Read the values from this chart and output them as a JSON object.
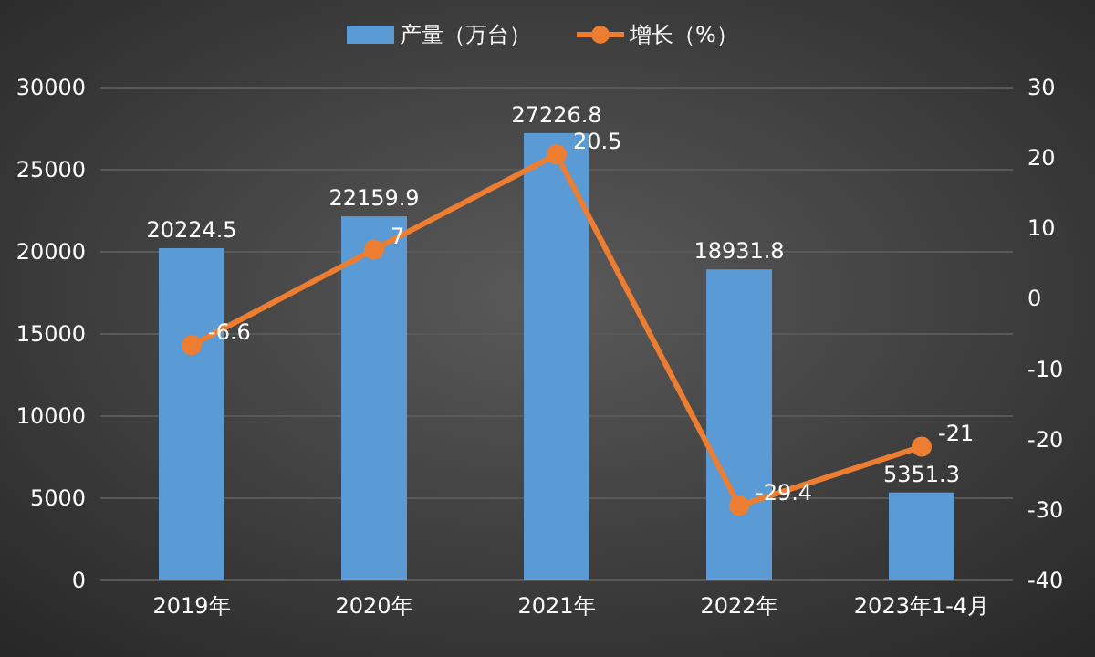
{
  "chart_data": {
    "type": "bar",
    "categories": [
      "2019年",
      "2020年",
      "2021年",
      "2022年",
      "2023年1-4月"
    ],
    "series": [
      {
        "name": "产量（万台）",
        "color": "#5b9bd5",
        "values": [
          20224.5,
          22159.9,
          27226.8,
          18931.8,
          5351.3
        ]
      },
      {
        "name": "增长（%）",
        "type": "line",
        "axis": "y2",
        "color": "#ed7d31",
        "values": [
          -6.6,
          7,
          20.5,
          -29.4,
          -21
        ]
      }
    ],
    "ylim": [
      0,
      30000
    ],
    "yticks": [
      0,
      5000,
      10000,
      15000,
      20000,
      25000,
      30000
    ],
    "y2lim": [
      -40,
      30
    ],
    "y2ticks": [
      -40,
      -30,
      -20,
      -10,
      0,
      10,
      20,
      30
    ],
    "grid": "y",
    "legend": "top",
    "marker": "circle",
    "line_style": "solid",
    "data_labels": true
  }
}
